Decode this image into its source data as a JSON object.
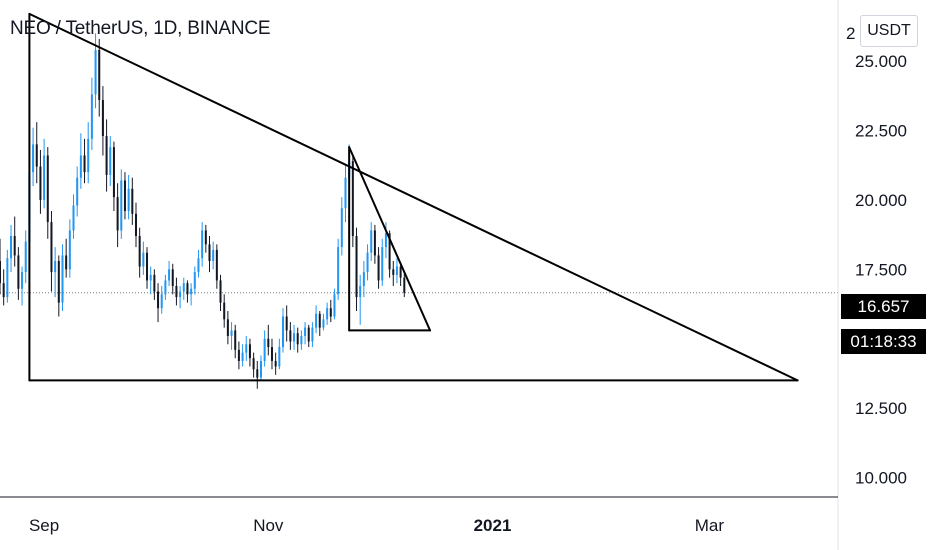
{
  "header": {
    "title": "NEO / TetherUS, 1D, BINANCE",
    "currency": "USDT"
  },
  "price_axis": {
    "top_partial": "2",
    "current_price": "16.657",
    "countdown": "01:18:33"
  },
  "colors": {
    "up": "#2196f3",
    "down": "#131722",
    "line": "#000000",
    "axis": "#131722",
    "price_line": "#787b86"
  },
  "chart_data": {
    "type": "candlestick",
    "title": "NEO / TetherUS, 1D, BINANCE",
    "ylim": [
      9.3,
      27.2
    ],
    "yticks": [
      {
        "value": 10,
        "label": "10.000"
      },
      {
        "value": 12.5,
        "label": "12.500"
      },
      {
        "value": 15,
        "label": ""
      },
      {
        "value": 17.5,
        "label": "17.500"
      },
      {
        "value": 20,
        "label": "20.000"
      },
      {
        "value": 22.5,
        "label": "22.500"
      },
      {
        "value": 25,
        "label": "25.000"
      }
    ],
    "xlim": [
      "2020-08-20",
      "2021-04-05"
    ],
    "xticks": [
      {
        "date": "2020-09-01",
        "label": "Sep",
        "bold": false
      },
      {
        "date": "2020-11-01",
        "label": "Nov",
        "bold": false
      },
      {
        "date": "2021-01-01",
        "label": "2021",
        "bold": true
      },
      {
        "date": "2021-03-01",
        "label": "Mar",
        "bold": false
      }
    ],
    "current_price": 16.657,
    "candles": [
      [
        "2020-08-20",
        17.8,
        18.6,
        16.6,
        17.0
      ],
      [
        "2020-08-21",
        17.0,
        17.5,
        16.2,
        16.5
      ],
      [
        "2020-08-22",
        16.5,
        18.2,
        16.3,
        17.9
      ],
      [
        "2020-08-23",
        17.9,
        19.1,
        17.4,
        18.7
      ],
      [
        "2020-08-24",
        18.7,
        19.4,
        17.6,
        18.0
      ],
      [
        "2020-08-25",
        18.0,
        18.3,
        16.4,
        16.8
      ],
      [
        "2020-08-26",
        16.8,
        17.6,
        16.2,
        17.4
      ],
      [
        "2020-08-27",
        17.4,
        18.9,
        17.0,
        18.5
      ],
      [
        "2020-08-28",
        18.5,
        21.4,
        18.2,
        21.0
      ],
      [
        "2020-08-29",
        21.0,
        22.6,
        20.5,
        22.0
      ],
      [
        "2020-08-30",
        22.0,
        22.8,
        20.6,
        21.2
      ],
      [
        "2020-08-31",
        21.2,
        21.8,
        19.5,
        20.0
      ],
      [
        "2020-09-01",
        20.0,
        22.2,
        19.7,
        21.6
      ],
      [
        "2020-09-02",
        21.6,
        21.9,
        18.6,
        19.2
      ],
      [
        "2020-09-03",
        19.2,
        19.6,
        16.7,
        17.4
      ],
      [
        "2020-09-04",
        17.4,
        18.3,
        16.5,
        17.8
      ],
      [
        "2020-09-05",
        17.8,
        18.0,
        15.8,
        16.3
      ],
      [
        "2020-09-06",
        16.3,
        18.4,
        16.0,
        18.0
      ],
      [
        "2020-09-07",
        18.0,
        18.6,
        17.2,
        17.5
      ],
      [
        "2020-09-08",
        17.5,
        19.3,
        17.2,
        18.9
      ],
      [
        "2020-09-09",
        18.9,
        20.2,
        18.6,
        19.8
      ],
      [
        "2020-09-10",
        19.8,
        21.2,
        19.4,
        20.8
      ],
      [
        "2020-09-11",
        20.8,
        22.4,
        20.4,
        21.6
      ],
      [
        "2020-09-12",
        21.6,
        22.2,
        20.6,
        21.0
      ],
      [
        "2020-09-13",
        21.0,
        22.8,
        20.6,
        22.2
      ],
      [
        "2020-09-14",
        22.2,
        24.4,
        21.8,
        23.8
      ],
      [
        "2020-09-15",
        23.8,
        26.0,
        23.3,
        25.4
      ],
      [
        "2020-09-16",
        25.4,
        25.8,
        23.0,
        23.6
      ],
      [
        "2020-09-17",
        23.6,
        24.1,
        21.6,
        22.3
      ],
      [
        "2020-09-18",
        22.3,
        22.9,
        20.3,
        20.9
      ],
      [
        "2020-09-19",
        20.9,
        22.3,
        20.5,
        21.9
      ],
      [
        "2020-09-20",
        21.9,
        22.1,
        19.6,
        20.1
      ],
      [
        "2020-09-21",
        20.1,
        20.6,
        18.3,
        18.9
      ],
      [
        "2020-09-22",
        18.9,
        21.1,
        18.6,
        20.7
      ],
      [
        "2020-09-23",
        20.7,
        21.0,
        19.3,
        19.6
      ],
      [
        "2020-09-24",
        19.6,
        20.9,
        19.3,
        20.4
      ],
      [
        "2020-09-25",
        20.4,
        20.8,
        19.1,
        19.5
      ],
      [
        "2020-09-26",
        19.5,
        19.9,
        18.3,
        18.7
      ],
      [
        "2020-09-27",
        18.7,
        19.0,
        17.2,
        17.6
      ],
      [
        "2020-09-28",
        17.6,
        18.5,
        17.3,
        18.1
      ],
      [
        "2020-09-29",
        18.1,
        18.3,
        16.8,
        17.1
      ],
      [
        "2020-09-30",
        17.1,
        17.6,
        16.6,
        17.3
      ],
      [
        "2020-10-01",
        17.3,
        17.5,
        16.4,
        16.7
      ],
      [
        "2020-10-02",
        16.7,
        17.0,
        15.6,
        16.1
      ],
      [
        "2020-10-03",
        16.1,
        16.9,
        15.9,
        16.6
      ],
      [
        "2020-10-04",
        16.6,
        17.3,
        16.4,
        17.1
      ],
      [
        "2020-10-05",
        17.1,
        17.8,
        16.9,
        17.5
      ],
      [
        "2020-10-06",
        17.5,
        17.7,
        16.6,
        16.9
      ],
      [
        "2020-10-07",
        16.9,
        17.2,
        16.2,
        16.5
      ],
      [
        "2020-10-08",
        16.5,
        16.9,
        16.1,
        16.7
      ],
      [
        "2020-10-09",
        16.7,
        17.2,
        16.4,
        17.0
      ],
      [
        "2020-10-10",
        17.0,
        17.1,
        16.3,
        16.6
      ],
      [
        "2020-10-11",
        16.6,
        17.0,
        16.2,
        16.8
      ],
      [
        "2020-10-12",
        16.8,
        17.6,
        16.6,
        17.4
      ],
      [
        "2020-10-13",
        17.4,
        18.2,
        17.2,
        17.9
      ],
      [
        "2020-10-14",
        17.9,
        19.2,
        17.6,
        18.9
      ],
      [
        "2020-10-15",
        18.9,
        19.1,
        18.1,
        18.4
      ],
      [
        "2020-10-16",
        18.4,
        18.7,
        17.4,
        17.8
      ],
      [
        "2020-10-17",
        17.8,
        18.5,
        17.5,
        18.2
      ],
      [
        "2020-10-18",
        18.2,
        18.4,
        16.8,
        17.1
      ],
      [
        "2020-10-19",
        17.1,
        17.3,
        16.0,
        16.3
      ],
      [
        "2020-10-20",
        16.3,
        16.6,
        15.4,
        15.7
      ],
      [
        "2020-10-21",
        15.7,
        16.0,
        14.8,
        15.1
      ],
      [
        "2020-10-22",
        15.1,
        15.6,
        14.6,
        15.3
      ],
      [
        "2020-10-23",
        15.3,
        15.5,
        14.3,
        14.6
      ],
      [
        "2020-10-24",
        14.6,
        14.9,
        13.9,
        14.2
      ],
      [
        "2020-10-25",
        14.2,
        14.8,
        14.0,
        14.5
      ],
      [
        "2020-10-26",
        14.5,
        15.1,
        14.2,
        14.8
      ],
      [
        "2020-10-27",
        14.8,
        15.0,
        14.0,
        14.3
      ],
      [
        "2020-10-28",
        14.3,
        14.5,
        13.6,
        13.9
      ],
      [
        "2020-10-29",
        13.9,
        14.2,
        13.2,
        13.6
      ],
      [
        "2020-10-30",
        13.6,
        14.4,
        13.5,
        14.2
      ],
      [
        "2020-10-31",
        14.2,
        15.3,
        14.0,
        15.0
      ],
      [
        "2020-11-01",
        15.0,
        15.5,
        14.4,
        14.7
      ],
      [
        "2020-11-02",
        14.7,
        15.0,
        13.9,
        14.2
      ],
      [
        "2020-11-03",
        14.2,
        14.5,
        13.7,
        14.0
      ],
      [
        "2020-11-04",
        14.0,
        15.0,
        13.9,
        14.7
      ],
      [
        "2020-11-05",
        14.7,
        16.1,
        14.5,
        15.8
      ],
      [
        "2020-11-06",
        15.8,
        16.2,
        14.9,
        15.3
      ],
      [
        "2020-11-07",
        15.3,
        15.6,
        14.6,
        14.9
      ],
      [
        "2020-11-08",
        14.9,
        15.5,
        14.6,
        15.2
      ],
      [
        "2020-11-09",
        15.2,
        15.4,
        14.5,
        14.8
      ],
      [
        "2020-11-10",
        14.8,
        15.3,
        14.6,
        15.1
      ],
      [
        "2020-11-11",
        15.1,
        15.6,
        14.8,
        15.4
      ],
      [
        "2020-11-12",
        15.4,
        15.5,
        14.7,
        14.9
      ],
      [
        "2020-11-13",
        14.9,
        15.6,
        14.7,
        15.4
      ],
      [
        "2020-11-14",
        15.4,
        16.2,
        15.2,
        15.9
      ],
      [
        "2020-11-15",
        15.9,
        16.0,
        15.1,
        15.4
      ],
      [
        "2020-11-16",
        15.4,
        15.9,
        15.3,
        15.7
      ],
      [
        "2020-11-17",
        15.7,
        16.3,
        15.5,
        16.1
      ],
      [
        "2020-11-18",
        16.1,
        16.4,
        15.6,
        15.8
      ],
      [
        "2020-11-19",
        15.8,
        16.8,
        15.7,
        16.6
      ],
      [
        "2020-11-20",
        16.6,
        18.6,
        16.4,
        18.3
      ],
      [
        "2020-11-21",
        18.3,
        20.1,
        18.0,
        19.7
      ],
      [
        "2020-11-22",
        19.7,
        21.3,
        19.2,
        20.8
      ],
      [
        "2020-11-23",
        20.8,
        22.0,
        20.2,
        21.4
      ],
      [
        "2020-11-24",
        21.4,
        21.6,
        18.3,
        18.7
      ],
      [
        "2020-11-25",
        18.7,
        19.0,
        16.0,
        16.5
      ],
      [
        "2020-11-26",
        16.5,
        17.3,
        15.5,
        16.9
      ],
      [
        "2020-11-27",
        16.9,
        17.8,
        16.5,
        17.4
      ],
      [
        "2020-11-28",
        17.4,
        18.4,
        17.1,
        18.1
      ],
      [
        "2020-11-29",
        18.1,
        19.2,
        17.8,
        18.9
      ],
      [
        "2020-11-30",
        18.9,
        19.1,
        17.7,
        18.0
      ],
      [
        "2020-12-01",
        18.0,
        18.3,
        16.8,
        17.1
      ],
      [
        "2020-12-02",
        17.1,
        18.6,
        16.9,
        18.3
      ],
      [
        "2020-12-03",
        18.3,
        19.2,
        17.9,
        18.8
      ],
      [
        "2020-12-04",
        18.8,
        18.9,
        17.2,
        17.5
      ],
      [
        "2020-12-05",
        17.5,
        17.8,
        16.9,
        17.3
      ],
      [
        "2020-12-06",
        17.3,
        17.9,
        17.0,
        17.6
      ],
      [
        "2020-12-07",
        17.6,
        17.7,
        16.9,
        17.2
      ],
      [
        "2020-12-08",
        17.2,
        17.4,
        16.5,
        16.657
      ]
    ],
    "trendlines": [
      {
        "from": [
          "2020-08-28",
          26.7
        ],
        "to": [
          "2021-03-25",
          13.5
        ]
      },
      {
        "from": [
          "2020-08-28",
          26.7
        ],
        "to": [
          "2020-08-28",
          13.5
        ]
      },
      {
        "from": [
          "2020-08-28",
          13.5
        ],
        "to": [
          "2021-03-25",
          13.5
        ]
      },
      {
        "from": [
          "2020-11-23",
          21.9
        ],
        "to": [
          "2020-12-15",
          15.3
        ]
      },
      {
        "from": [
          "2020-11-23",
          21.9
        ],
        "to": [
          "2020-11-23",
          15.3
        ]
      },
      {
        "from": [
          "2020-11-23",
          15.3
        ],
        "to": [
          "2020-12-15",
          15.3
        ]
      }
    ]
  }
}
